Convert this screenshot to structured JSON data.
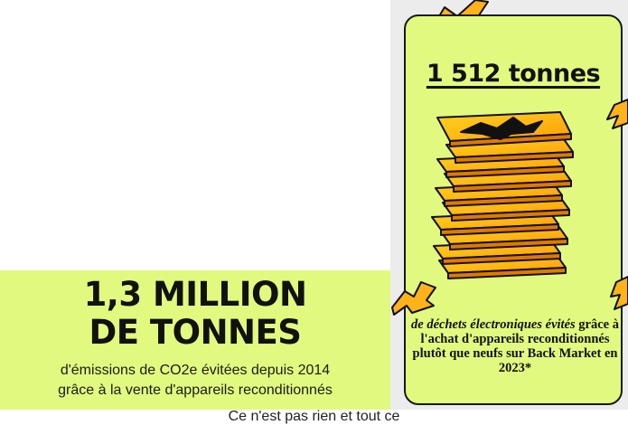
{
  "left_panel": {
    "headline_line1": "1,3 MILLION",
    "headline_line2": "DE TONNES",
    "desc_line1": "d'émissions de CO2e évitées depuis 2014",
    "desc_line2": "grâce à la vente d'appareils reconditionnés"
  },
  "right_card": {
    "headline": "1 512 tonnes",
    "desc_em": "de déchets électroniques évités",
    "desc_rest": " grâce à l'achat d'appareils reconditionnés plutôt que neufs sur Back Market en 2023*"
  },
  "footer": {
    "text": "Ce n'est pas rien et tout ce"
  },
  "colors": {
    "accent_lime": "#e1f97f",
    "phone_orange": "#ff9f0a",
    "phone_yellow": "#ffd21f",
    "outline": "#111111"
  },
  "icons": [
    "phone-stack-illustration",
    "spark-icon"
  ]
}
